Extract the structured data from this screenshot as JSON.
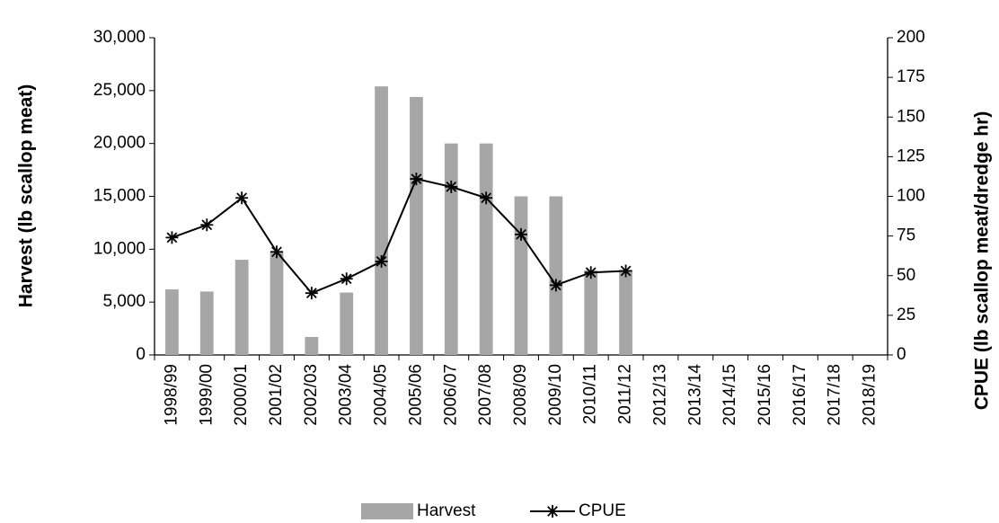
{
  "chart_data": {
    "type": "bar-line",
    "categories": [
      "1998/99",
      "1999/00",
      "2000/01",
      "2001/02",
      "2002/03",
      "2003/04",
      "2004/05",
      "2005/06",
      "2006/07",
      "2007/08",
      "2008/09",
      "2009/10",
      "2010/11",
      "2011/12",
      "2012/13",
      "2013/14",
      "2014/15",
      "2015/16",
      "2016/17",
      "2017/18",
      "2018/19"
    ],
    "series": [
      {
        "name": "Harvest",
        "type": "bar",
        "color": "#a6a6a6",
        "values": [
          6200,
          6000,
          9000,
          9800,
          1700,
          5900,
          25400,
          24400,
          20000,
          20000,
          15000,
          15000,
          8000,
          8000,
          null,
          null,
          null,
          null,
          null,
          null,
          null
        ]
      },
      {
        "name": "CPUE",
        "type": "line",
        "axis": "y2",
        "color": "#000000",
        "values": [
          74,
          82,
          99,
          65,
          39,
          48,
          59,
          111,
          106,
          99,
          76,
          44,
          52,
          53,
          null,
          null,
          null,
          null,
          null,
          null,
          null
        ]
      }
    ],
    "ylabel": "Harvest (lb scallop meat)",
    "y2label": "CPUE  (lb scallop meat/dredge hr)",
    "ylim": [
      0,
      30000
    ],
    "yticks": [
      0,
      {
        "value": 5000,
        "label": "5,000"
      },
      {
        "value": 10000,
        "label": "10,000"
      },
      {
        "value": 15000,
        "label": "15,000"
      },
      {
        "value": 20000,
        "label": "20,000"
      },
      {
        "value": 25000,
        "label": "25,000"
      },
      {
        "value": 30000,
        "label": "30,000"
      }
    ],
    "y2lim": [
      0,
      200
    ],
    "y2ticks": [
      0,
      25,
      50,
      75,
      100,
      125,
      150,
      175,
      200
    ],
    "grid": false,
    "legend": "bottom"
  }
}
